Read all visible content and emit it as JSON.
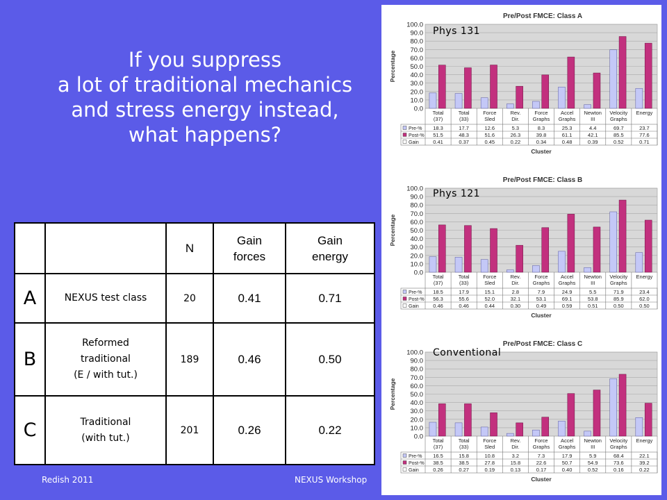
{
  "slide": {
    "question_lines": [
      "If you suppress",
      "a lot of traditional mechanics",
      "and stress energy instead,",
      "what happens?"
    ],
    "footer_left": "Redish 2011",
    "footer_right": "NEXUS Workshop"
  },
  "table": {
    "headers": {
      "n": "N",
      "gain_forces": [
        "Gain",
        "forces"
      ],
      "gain_energy": [
        "Gain",
        "energy"
      ]
    },
    "rows": [
      {
        "label": "A",
        "desc_lines": [
          "NEXUS test class"
        ],
        "n": "20",
        "gain_forces": "0.41",
        "gain_energy": "0.71"
      },
      {
        "label": "B",
        "desc_lines": [
          "Reformed",
          "traditional",
          "(E / with tut.)"
        ],
        "n": "189",
        "gain_forces": "0.46",
        "gain_energy": "0.50"
      },
      {
        "label": "C",
        "desc_lines": [
          "Traditional",
          "(with tut.)"
        ],
        "n": "201",
        "gain_forces": "0.26",
        "gain_energy": "0.22"
      }
    ]
  },
  "colors": {
    "background": "#5b5be8",
    "pre": "#c4c8f7",
    "post": "#c2307e",
    "plot_bg": "#d8d8d8"
  },
  "chart_data": [
    {
      "type": "bar",
      "title": "Pre/Post FMCE:  Class A",
      "tag": "Phys 131",
      "xlabel": "Cluster",
      "ylabel": "Percentage",
      "ylim": [
        0,
        100
      ],
      "yticks": [
        "0.0",
        "10.0",
        "20.0",
        "30.0",
        "40.0",
        "50.0",
        "60.0",
        "70.0",
        "80.0",
        "90.0",
        "100.0"
      ],
      "categories": [
        [
          "Total",
          "(37)"
        ],
        [
          "Total",
          "(33)"
        ],
        [
          "Force",
          "Sled"
        ],
        [
          "Rev.",
          "Dir."
        ],
        [
          "Force",
          "Graphs"
        ],
        [
          "Accel",
          "Graphs"
        ],
        [
          "Newton",
          "III"
        ],
        [
          "Velocity",
          "Graphs"
        ],
        [
          "Energy"
        ]
      ],
      "series": [
        {
          "name": "Pre-%",
          "values": [
            18.3,
            17.7,
            12.6,
            5.3,
            8.3,
            25.3,
            4.4,
            69.7,
            23.7
          ]
        },
        {
          "name": "Post-%",
          "values": [
            51.5,
            48.3,
            51.6,
            26.3,
            39.8,
            61.1,
            42.1,
            85.5,
            77.6
          ]
        }
      ],
      "gain": {
        "name": "Gain",
        "values": [
          "0.41",
          "0.37",
          "0.45",
          "0.22",
          "0.34",
          "0.48",
          "0.39",
          "0.52",
          "0.71"
        ]
      },
      "table_values": {
        "pre": [
          "18.3",
          "17.7",
          "12.6",
          "5.3",
          "8.3",
          "25.3",
          "4.4",
          "69.7",
          "23.7"
        ],
        "post": [
          "51.5",
          "48.3",
          "51.6",
          "26.3",
          "39.8",
          "61.1",
          "42.1",
          "85.5",
          "77.6"
        ]
      }
    },
    {
      "type": "bar",
      "title": "Pre/Post FMCE:  Class B",
      "tag": "Phys 121",
      "xlabel": "Cluster",
      "ylabel": "Percentage",
      "ylim": [
        0,
        100
      ],
      "yticks": [
        "0.0",
        "10.0",
        "20.0",
        "30.0",
        "40.0",
        "50.0",
        "60.0",
        "70.0",
        "80.0",
        "90.0",
        "100.0"
      ],
      "categories": [
        [
          "Total",
          "(37)"
        ],
        [
          "Total",
          "(33)"
        ],
        [
          "Force",
          "Sled"
        ],
        [
          "Rev.",
          "Dir."
        ],
        [
          "Force",
          "Graphs"
        ],
        [
          "Accel",
          "Graphs"
        ],
        [
          "Newton",
          "III"
        ],
        [
          "Velocity",
          "Graphs"
        ],
        [
          "Energy"
        ]
      ],
      "series": [
        {
          "name": "Pre-%",
          "values": [
            18.5,
            17.9,
            15.1,
            2.8,
            7.9,
            24.9,
            5.5,
            71.9,
            23.4
          ]
        },
        {
          "name": "Post-%",
          "values": [
            56.3,
            55.6,
            52.0,
            32.1,
            53.1,
            69.1,
            53.8,
            85.9,
            62.0
          ]
        }
      ],
      "gain": {
        "name": "Gain",
        "values": [
          "0.46",
          "0.46",
          "0.44",
          "0.30",
          "0.49",
          "0.59",
          "0.51",
          "0.50",
          "0.50"
        ]
      },
      "table_values": {
        "pre": [
          "18.5",
          "17.9",
          "15.1",
          "2.8",
          "7.9",
          "24.9",
          "5.5",
          "71.9",
          "23.4"
        ],
        "post": [
          "56.3",
          "55.6",
          "52.0",
          "32.1",
          "53.1",
          "69.1",
          "53.8",
          "85.9",
          "62.0"
        ]
      }
    },
    {
      "type": "bar",
      "title": "Pre/Post FMCE:  Class C",
      "tag": "Conventional",
      "xlabel": "Cluster",
      "ylabel": "Percentage",
      "ylim": [
        0,
        100
      ],
      "yticks": [
        "0.0",
        "10.0",
        "20.0",
        "30.0",
        "40.0",
        "50.0",
        "60.0",
        "70.0",
        "80.0",
        "90.0",
        "100.0"
      ],
      "categories": [
        [
          "Total",
          "(37)"
        ],
        [
          "Total",
          "(33)"
        ],
        [
          "Force",
          "Sled"
        ],
        [
          "Rev.",
          "Dir."
        ],
        [
          "Force",
          "Graphs"
        ],
        [
          "Accel",
          "Graphs"
        ],
        [
          "Newton",
          "III"
        ],
        [
          "Velocity",
          "Graphs"
        ],
        [
          "Energy"
        ]
      ],
      "series": [
        {
          "name": "Pre-%",
          "values": [
            16.5,
            15.8,
            10.8,
            3.2,
            7.3,
            17.9,
            5.9,
            68.4,
            22.1
          ]
        },
        {
          "name": "Post-%",
          "values": [
            38.5,
            38.5,
            27.8,
            15.8,
            22.6,
            50.7,
            54.9,
            73.6,
            39.2
          ]
        }
      ],
      "gain": {
        "name": "Gain",
        "values": [
          "0.26",
          "0.27",
          "0.19",
          "0.13",
          "0.17",
          "0.40",
          "0.52",
          "0.16",
          "0.22"
        ]
      },
      "table_values": {
        "pre": [
          "16.5",
          "15.8",
          "10.8",
          "3.2",
          "7.3",
          "17.9",
          "5.9",
          "68.4",
          "22.1"
        ],
        "post": [
          "38.5",
          "38.5",
          "27.8",
          "15.8",
          "22.6",
          "50.7",
          "54.9",
          "73.6",
          "39.2"
        ]
      }
    }
  ]
}
